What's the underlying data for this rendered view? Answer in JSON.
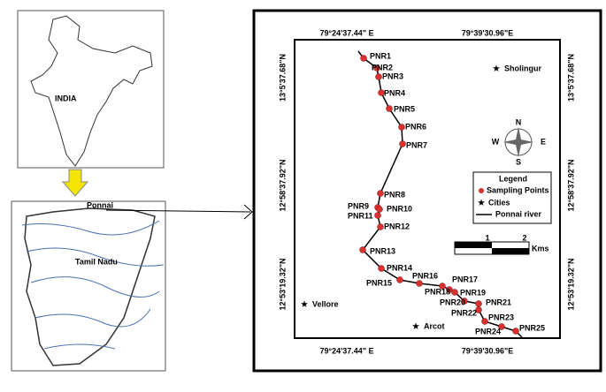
{
  "overview": {
    "country": "INDIA",
    "river": "Ponnai",
    "state": "Tamil Nadu"
  },
  "map": {
    "coords": {
      "top": [
        "79°24'37.44\" E",
        "79°39'30.96\"E"
      ],
      "bottom": [
        "79°24'37.44\" E",
        "79°39'30.96\"E"
      ],
      "left": [
        "13°5'37.68\"N",
        "12°58'37.92\"N",
        "12°53'19.32\"N"
      ],
      "right": [
        "13°5'37.68\"N",
        "12°58'37.92\"N",
        "12°53'19.32\"N"
      ]
    },
    "points": [
      "PNR1",
      "PNR2",
      "PNR3",
      "PNR4",
      "PNR5",
      "PNR6",
      "PNR7",
      "PNR8",
      "PNR9",
      "PNR10",
      "PNR11",
      "PNR12",
      "PNR13",
      "PNR14",
      "PNR15",
      "PNR16",
      "PNR17",
      "PNR18",
      "PNR19",
      "PNR20",
      "PNR21",
      "PNR22",
      "PNR23",
      "PNR24",
      "PNR25"
    ],
    "cities": [
      "Sholingur",
      "Vellore",
      "Arcot"
    ],
    "compass": {
      "n": "N",
      "s": "S",
      "e": "E",
      "w": "W"
    },
    "scale": {
      "ticks": [
        "1",
        "2"
      ],
      "unit": "Kms"
    },
    "legend": {
      "title": "Legend",
      "items": [
        "Sampling Points",
        "Cities",
        "Ponnai river"
      ]
    }
  }
}
